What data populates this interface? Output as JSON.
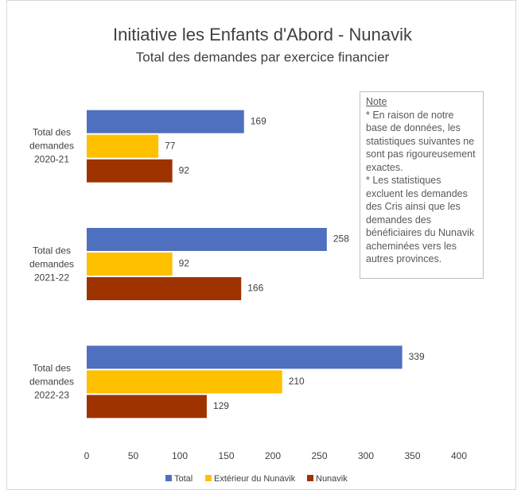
{
  "chart_data": {
    "type": "barh",
    "title": "Initiative les Enfants d'Abord - Nunavik",
    "subtitle": "Total des demandes par exercice financier",
    "categories": [
      "Total des demandes 2020-21",
      "Total des demandes 2021-22",
      "Total des demandes 2022-23"
    ],
    "series": [
      {
        "name": "Total",
        "color": "#4f6fbf",
        "values": [
          169,
          258,
          339
        ]
      },
      {
        "name": "Extérieur du Nunavik",
        "color": "#ffc000",
        "values": [
          77,
          92,
          210
        ]
      },
      {
        "name": "Nunavik",
        "color": "#9e3300",
        "values": [
          92,
          166,
          129
        ]
      }
    ],
    "xlim": [
      0,
      400
    ],
    "xticks": [
      0,
      50,
      100,
      150,
      200,
      250,
      300,
      350,
      400
    ],
    "grid": false,
    "legend": "bottom",
    "note": {
      "title": "Note",
      "paragraphs": [
        "* En raison de notre base de données, les statistiques suivantes ne sont pas rigoureusement exactes.",
        "* Les statistiques excluent les demandes des Cris ainsi que les demandes des bénéficiaires du Nunavik acheminées vers les autres provinces."
      ]
    }
  }
}
